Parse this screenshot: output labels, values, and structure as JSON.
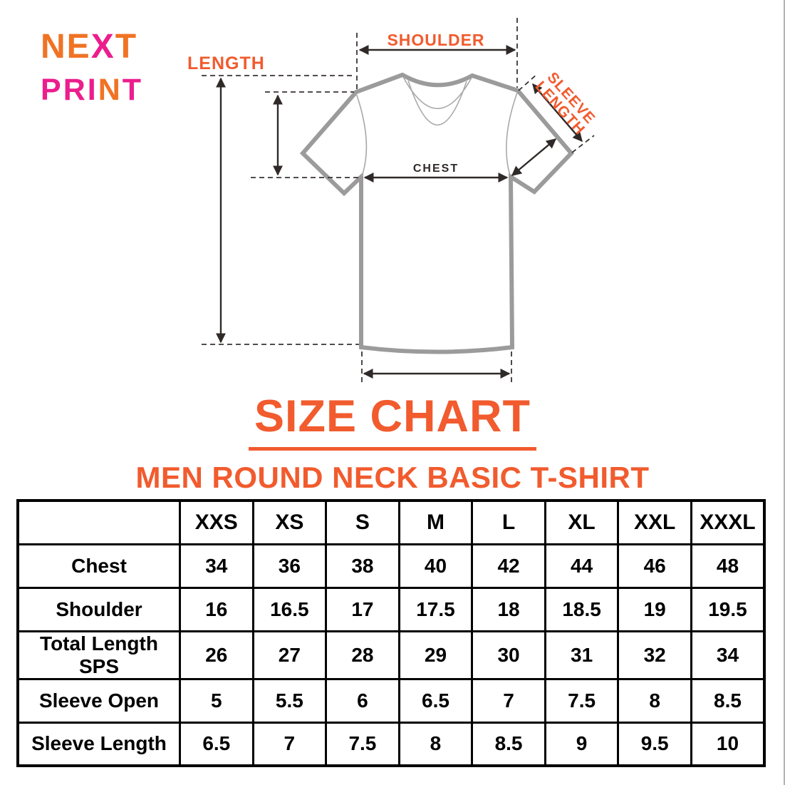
{
  "colors": {
    "accent_orange": "#f15b2e",
    "logo_orange": "#f07324",
    "logo_magenta": "#ec1d8d",
    "shirt_gray": "#9b9b9b",
    "line_dark": "#2f2a28"
  },
  "logo": {
    "line1": [
      {
        "ch": "N",
        "color": "logo_orange"
      },
      {
        "ch": "E",
        "color": "logo_orange"
      },
      {
        "ch": "X",
        "color": "logo_magenta"
      },
      {
        "ch": "T",
        "color": "logo_orange"
      }
    ],
    "line2": [
      {
        "ch": "P",
        "color": "logo_magenta"
      },
      {
        "ch": "R",
        "color": "logo_magenta"
      },
      {
        "ch": "I",
        "color": "logo_magenta"
      },
      {
        "ch": "N",
        "color": "logo_orange"
      },
      {
        "ch": "T",
        "color": "logo_magenta"
      }
    ]
  },
  "diagram": {
    "labels": {
      "length": "LENGTH",
      "shoulder": "SHOULDER",
      "sleeve_length_line1": "SLEEVE",
      "sleeve_length_line2": "LENGTH",
      "chest": "CHEST"
    }
  },
  "title": "SIZE CHART",
  "subtitle": "MEN ROUND NECK BASIC T-SHIRT",
  "size_table": {
    "columns": [
      "XXS",
      "XS",
      "S",
      "M",
      "L",
      "XL",
      "XXL",
      "XXXL"
    ],
    "rows": [
      {
        "label": "Chest",
        "values": [
          "34",
          "36",
          "38",
          "40",
          "42",
          "44",
          "46",
          "48"
        ]
      },
      {
        "label": "Shoulder",
        "values": [
          "16",
          "16.5",
          "17",
          "17.5",
          "18",
          "18.5",
          "19",
          "19.5"
        ]
      },
      {
        "label": "Total Length SPS",
        "values": [
          "26",
          "27",
          "28",
          "29",
          "30",
          "31",
          "32",
          "34"
        ]
      },
      {
        "label": "Sleeve Open",
        "values": [
          "5",
          "5.5",
          "6",
          "6.5",
          "7",
          "7.5",
          "8",
          "8.5"
        ]
      },
      {
        "label": "Sleeve Length",
        "values": [
          "6.5",
          "7",
          "7.5",
          "8",
          "8.5",
          "9",
          "9.5",
          "10"
        ]
      }
    ]
  }
}
